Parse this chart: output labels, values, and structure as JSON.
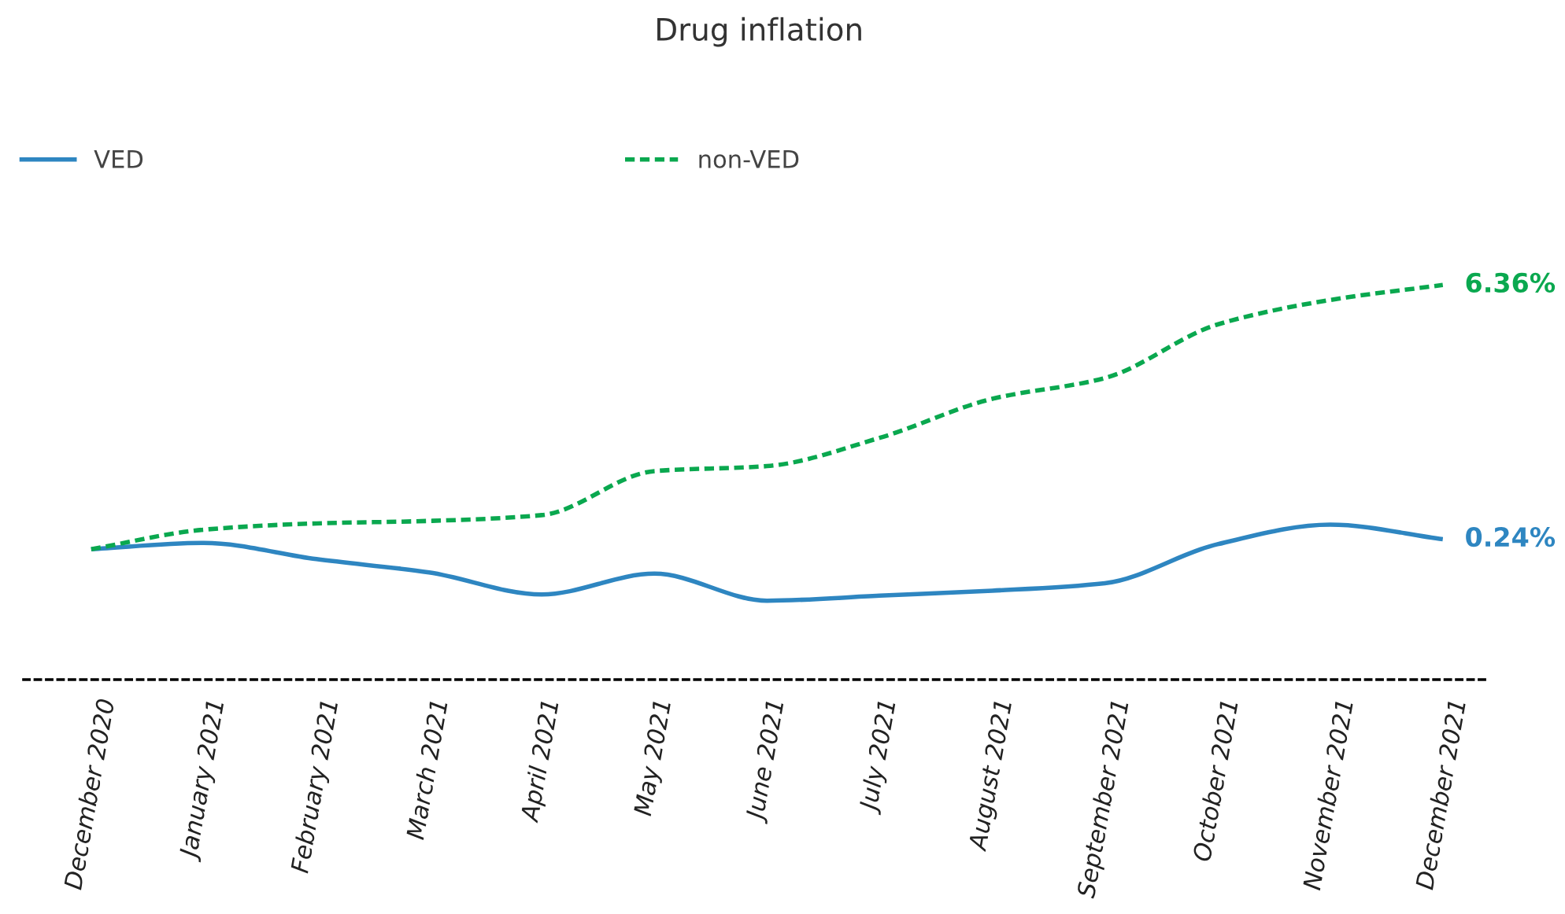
{
  "chart_data": {
    "type": "line",
    "title": "Drug inflation",
    "categories": [
      "December 2020",
      "January 2021",
      "February 2021",
      "March 2021",
      "April 2021",
      "May 2021",
      "June 2021",
      "July 2021",
      "August 2021",
      "September 2021",
      "October 2021",
      "November 2021",
      "December 2021"
    ],
    "series": [
      {
        "name": "VED",
        "color": "#2e86c1",
        "line_style": "solid",
        "values": [
          0,
          0.15,
          -0.24,
          -0.56,
          -1.09,
          -0.59,
          -1.24,
          -1.12,
          -1.0,
          -0.82,
          0.12,
          0.59,
          0.24
        ],
        "value_labels": [
          null,
          null,
          null,
          null,
          null,
          null,
          null,
          null,
          null,
          null,
          null,
          null,
          "0.24%"
        ]
      },
      {
        "name": "non-VED",
        "color": "#0aa84f",
        "line_style": "dashed",
        "values": [
          0,
          0.47,
          0.62,
          0.68,
          0.82,
          1.88,
          2.0,
          2.68,
          3.62,
          4.12,
          5.41,
          6.0,
          6.36
        ],
        "value_labels": [
          null,
          null,
          null,
          null,
          null,
          null,
          null,
          null,
          null,
          null,
          null,
          null,
          "6.36%"
        ]
      }
    ],
    "grid": false,
    "legend": "top left",
    "marker": "none",
    "tick_labels": "x"
  }
}
